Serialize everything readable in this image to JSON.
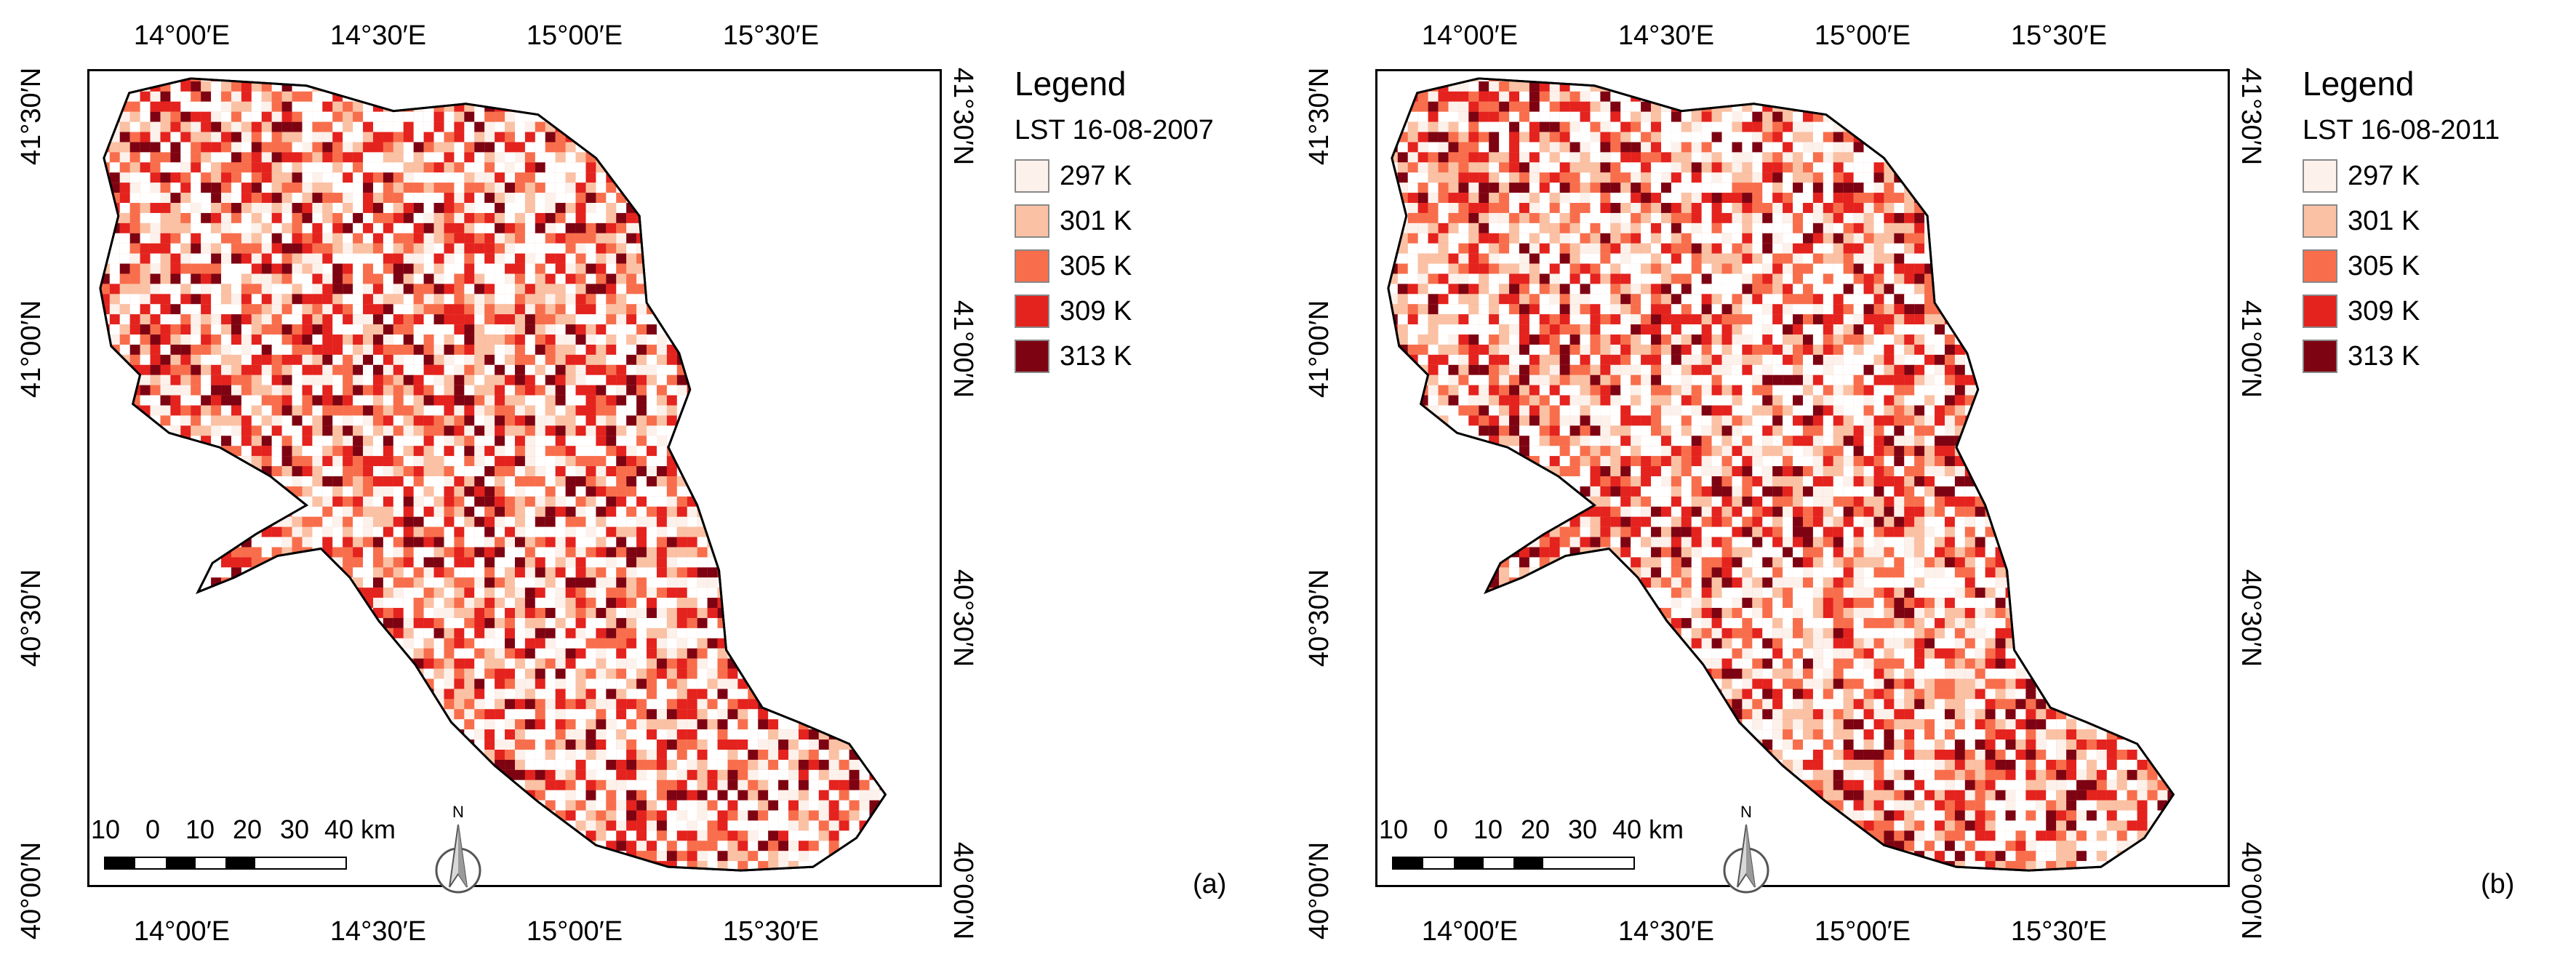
{
  "colors": {
    "c297": "#fdf1ec",
    "c301": "#fbc1a4",
    "c305": "#f86e4c",
    "c309": "#e4221e",
    "c313": "#7e0312",
    "coast": "#000000"
  },
  "axes": {
    "x_ticks": [
      "14°00′E",
      "14°30′E",
      "15°00′E",
      "15°30′E"
    ],
    "y_ticks": [
      "41°30′N",
      "41°00′N",
      "40°30′N",
      "40°00′N"
    ]
  },
  "legend": {
    "title": "Legend",
    "items": [
      {
        "label": "297 K",
        "color": "#fdf1ec"
      },
      {
        "label": "301 K",
        "color": "#fbc1a4"
      },
      {
        "label": "305 K",
        "color": "#f86e4c"
      },
      {
        "label": "309 K",
        "color": "#e4221e"
      },
      {
        "label": "313 K",
        "color": "#7e0312"
      }
    ]
  },
  "scale_bar": {
    "labels": [
      "10",
      "0",
      "10",
      "20",
      "30",
      "40 km"
    ]
  },
  "north_arrow": {
    "label": "N"
  },
  "panels": [
    {
      "id": "a",
      "legend_subtitle": "LST 16-08-2007",
      "panel_label": "(a)"
    },
    {
      "id": "b",
      "legend_subtitle": "LST 16-08-2011",
      "panel_label": "(b)"
    }
  ]
}
